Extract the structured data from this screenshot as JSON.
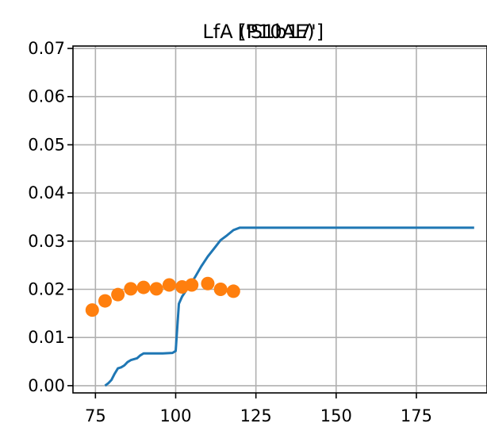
{
  "chart_data": {
    "type": "line",
    "title": "LfA (P10AE)",
    "subtitle": "['S1b17']",
    "xlabel": "",
    "ylabel": "",
    "xlim": [
      68,
      197
    ],
    "ylim": [
      -0.0015,
      0.0705
    ],
    "x_ticks": [
      75,
      100,
      125,
      150,
      175
    ],
    "x_tick_labels": [
      "75",
      "100",
      "125",
      "150",
      "175"
    ],
    "y_ticks": [
      0.0,
      0.01,
      0.02,
      0.03,
      0.04,
      0.05,
      0.06,
      0.07
    ],
    "y_tick_labels": [
      "0.00",
      "0.01",
      "0.02",
      "0.03",
      "0.04",
      "0.05",
      "0.06",
      "0.07"
    ],
    "grid": true,
    "series": [
      {
        "kind": "line",
        "color": "#1f77b4",
        "points": [
          [
            78,
            0.0
          ],
          [
            79,
            0.0005
          ],
          [
            80,
            0.0012
          ],
          [
            81,
            0.0025
          ],
          [
            82,
            0.0036
          ],
          [
            83,
            0.0038
          ],
          [
            84,
            0.0042
          ],
          [
            85,
            0.0049
          ],
          [
            86,
            0.0053
          ],
          [
            88,
            0.0057
          ],
          [
            89,
            0.0063
          ],
          [
            90,
            0.0067
          ],
          [
            96,
            0.0067
          ],
          [
            99,
            0.0068
          ],
          [
            100,
            0.0072
          ],
          [
            101,
            0.017
          ],
          [
            102,
            0.0185
          ],
          [
            104,
            0.0205
          ],
          [
            106,
            0.0225
          ],
          [
            108,
            0.0248
          ],
          [
            110,
            0.0268
          ],
          [
            112,
            0.0285
          ],
          [
            114,
            0.0302
          ],
          [
            116,
            0.0312
          ],
          [
            118,
            0.0323
          ],
          [
            120,
            0.0328
          ],
          [
            150,
            0.0328
          ],
          [
            175,
            0.0328
          ],
          [
            193,
            0.0328
          ]
        ]
      },
      {
        "kind": "scatter",
        "color": "#ff7f0e",
        "points": [
          [
            74,
            0.0157
          ],
          [
            78,
            0.0176
          ],
          [
            82,
            0.0189
          ],
          [
            86,
            0.0201
          ],
          [
            90,
            0.0204
          ],
          [
            94,
            0.0201
          ],
          [
            98,
            0.0209
          ],
          [
            102,
            0.0205
          ],
          [
            105,
            0.0209
          ],
          [
            110,
            0.0212
          ],
          [
            114,
            0.02
          ],
          [
            118,
            0.0196
          ]
        ]
      }
    ]
  }
}
